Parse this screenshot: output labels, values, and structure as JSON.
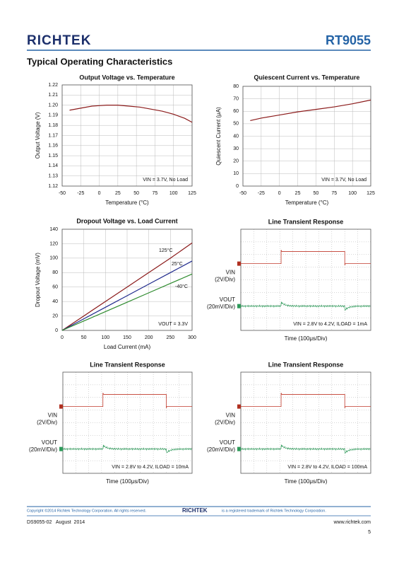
{
  "header": {
    "logo": "RICHTEK",
    "part": "RT9055",
    "section": "Typical Operating Characteristics"
  },
  "chart_data": [
    {
      "type": "line",
      "title": "Output Voltage vs. Temperature",
      "x_label": "Temperature (°C)",
      "y_label": "Output Voltage (V)",
      "annotation": "VIN = 3.7V, No Load",
      "color": "#8b1a1a",
      "grid": true,
      "x": [
        -40,
        -25,
        -10,
        0,
        10,
        25,
        40,
        55,
        70,
        85,
        100,
        115,
        125
      ],
      "values": [
        1.195,
        1.197,
        1.199,
        1.1995,
        1.2,
        1.2,
        1.199,
        1.198,
        1.196,
        1.194,
        1.191,
        1.187,
        1.183
      ],
      "xlim": [
        -50,
        125
      ],
      "xticks": [
        -50,
        -25,
        0,
        25,
        50,
        75,
        100,
        125
      ],
      "ylim": [
        1.12,
        1.22
      ],
      "yticks": [
        1.12,
        1.13,
        1.14,
        1.15,
        1.16,
        1.17,
        1.18,
        1.19,
        {
          "value": 1.2,
          "label": "1.20"
        },
        1.21,
        1.22
      ]
    },
    {
      "type": "line",
      "title": "Quiescent Current vs. Temperature",
      "x_label": "Temperature (°C)",
      "y_label": "Quiescent Current (μA)",
      "annotation": "VIN = 3.7V, No Load",
      "color": "#8b1a1a",
      "grid": true,
      "x": [
        -40,
        -25,
        -10,
        0,
        25,
        50,
        75,
        100,
        125
      ],
      "values": [
        52.5,
        54.5,
        56,
        57,
        59.5,
        61.5,
        63.5,
        66,
        69
      ],
      "xlim": [
        -50,
        125
      ],
      "xticks": [
        -50,
        -25,
        0,
        25,
        50,
        75,
        100,
        125
      ],
      "ylim": [
        0,
        80
      ],
      "yticks": [
        0,
        10,
        20,
        30,
        40,
        50,
        60,
        70,
        80
      ]
    },
    {
      "type": "line",
      "title": "Dropout Voltage vs. Load Current",
      "x_label": "Load Current (mA)",
      "y_label": "Dropout Voltage (mV)",
      "annotation": "VOUT = 3.3V",
      "grid": true,
      "x": [
        0,
        50,
        100,
        150,
        200,
        250,
        300
      ],
      "series": [
        {
          "name": "125°C",
          "color": "#8b1a1a",
          "values": [
            0,
            20,
            40,
            60,
            80,
            100,
            121
          ]
        },
        {
          "name": "25°C",
          "color": "#1f2a8c",
          "values": [
            0,
            16,
            32,
            48,
            64,
            80,
            96
          ]
        },
        {
          "name": "-40°C",
          "color": "#2e8b2e",
          "values": [
            0,
            13,
            26,
            39,
            52,
            65,
            78
          ]
        }
      ],
      "xlim": [
        0,
        300
      ],
      "xticks": [
        0,
        50,
        100,
        150,
        200,
        250,
        300
      ],
      "ylim": [
        0,
        140
      ],
      "yticks": [
        0,
        20,
        40,
        60,
        80,
        100,
        120,
        140
      ]
    },
    {
      "type": "scope",
      "title": "Line Transient Response",
      "ch1": [
        "VIN",
        "(2V/Div)"
      ],
      "ch2": [
        "VOUT",
        "(20mV/Div)"
      ],
      "annotation": "VIN = 2.8V to 4.2V, ILOAD = 1mA",
      "x_label": "Time (100μs/Div)"
    },
    {
      "type": "scope",
      "title": "Line Transient Response",
      "ch1": [
        "VIN",
        "(2V/Div)"
      ],
      "ch2": [
        "VOUT",
        "(20mV/Div)"
      ],
      "annotation": "VIN = 2.8V to 4.2V, ILOAD = 10mA",
      "x_label": "Time (100μs/Div)"
    },
    {
      "type": "scope",
      "title": "Line Transient Response",
      "ch1": [
        "VIN",
        "(2V/Div)"
      ],
      "ch2": [
        "VOUT",
        "(20mV/Div)"
      ],
      "annotation": "VIN = 2.8V to 4.2V, ILOAD = 100mA",
      "x_label": "Time (100μs/Div)"
    }
  ],
  "footer": {
    "copyright": "Copyright ©2014 Richtek Technology Corporation. All rights reserved.",
    "logo": "RICHTEK",
    "trademark": "is a registered trademark of Richtek Technology Corporation.",
    "doc": "DS9055-02   August  2014",
    "url": "www.richtek.com",
    "page": "5"
  }
}
